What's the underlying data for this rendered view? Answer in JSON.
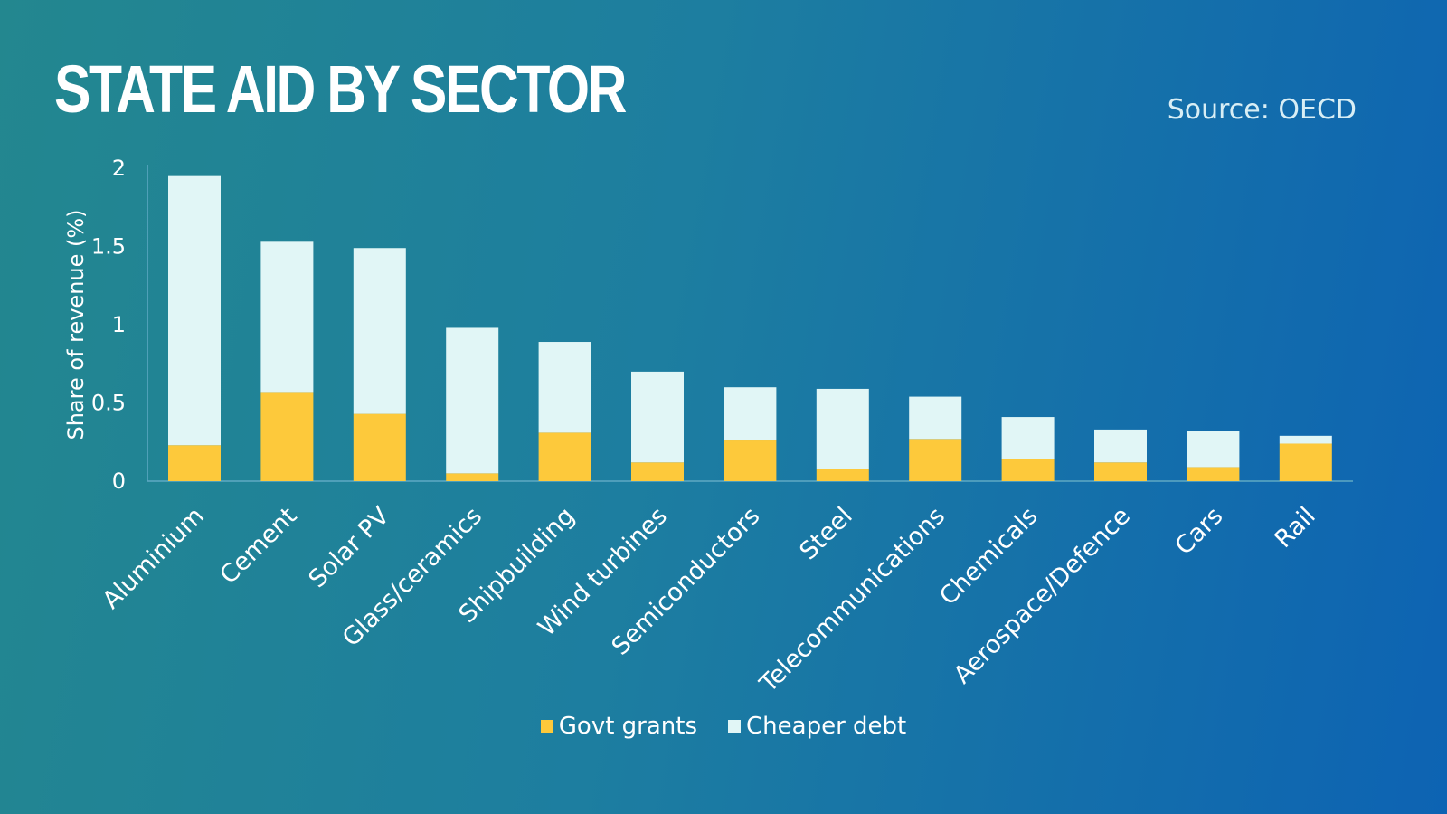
{
  "chart_data": {
    "type": "bar",
    "stacked": true,
    "title": "STATE AID BY SECTOR",
    "source": "Source: OECD",
    "ylabel": "Share of revenue (%)",
    "xlabel": "",
    "ylim": [
      0,
      2
    ],
    "yticks": [
      "0",
      "0.5",
      "1",
      "1.5",
      "2"
    ],
    "grid": false,
    "legend_placement": "bottom",
    "categories": [
      "Aluminium",
      "Cement",
      "Solar PV",
      "Glass/ceramics",
      "Shipbuilding",
      "Wind turbines",
      "Semiconductors",
      "Steel",
      "Telecommunications",
      "Chemicals",
      "Aerospace/Defence",
      "Cars",
      "Rail"
    ],
    "series": [
      {
        "name": "Govt grants",
        "color": "#fdc93b",
        "values": [
          0.23,
          0.57,
          0.43,
          0.05,
          0.31,
          0.12,
          0.26,
          0.08,
          0.27,
          0.14,
          0.12,
          0.09,
          0.24
        ]
      },
      {
        "name": "Cheaper debt",
        "color": "#e1f6f6",
        "values": [
          1.72,
          0.96,
          1.06,
          0.93,
          0.58,
          0.58,
          0.34,
          0.51,
          0.27,
          0.27,
          0.21,
          0.23,
          0.05
        ]
      }
    ]
  }
}
